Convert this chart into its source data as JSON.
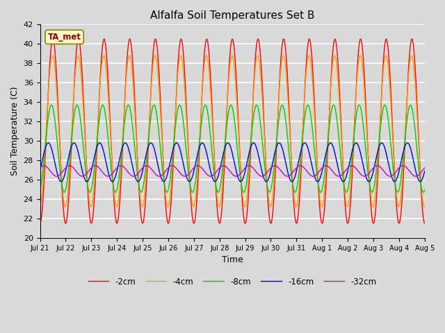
{
  "title": "Alfalfa Soil Temperatures Set B",
  "xlabel": "Time",
  "ylabel": "Soil Temperature (C)",
  "ylim": [
    20,
    42
  ],
  "yticks": [
    20,
    22,
    24,
    26,
    28,
    30,
    32,
    34,
    36,
    38,
    40,
    42
  ],
  "x_tick_labels": [
    "Jul 21",
    "Jul 22",
    "Jul 23",
    "Jul 24",
    "Jul 25",
    "Jul 26",
    "Jul 27",
    "Jul 28",
    "Jul 29",
    "Jul 30",
    "Jul 31",
    "Aug 1",
    "Aug 2",
    "Aug 3",
    "Aug 4",
    "Aug 5"
  ],
  "annotation_text": "TA_met",
  "background_color": "#d9d9d9",
  "plot_bg_color": "#d9d9d9",
  "grid_color": "#ffffff",
  "series": [
    {
      "label": "-2cm",
      "color": "#ff0000",
      "amplitude": 9.5,
      "mean": 31.0,
      "phase": 0.0
    },
    {
      "label": "-4cm",
      "color": "#ff9900",
      "amplitude": 7.8,
      "mean": 31.0,
      "phase": 0.08
    },
    {
      "label": "-8cm",
      "color": "#00cc00",
      "amplitude": 4.5,
      "mean": 29.2,
      "phase": 0.35
    },
    {
      "label": "-16cm",
      "color": "#0000dd",
      "amplitude": 2.0,
      "mean": 27.8,
      "phase": 1.1
    },
    {
      "label": "-32cm",
      "color": "#cc00cc",
      "amplitude": 0.55,
      "mean": 26.9,
      "phase": 2.2
    }
  ],
  "n_points": 3000,
  "linewidth": 1.0,
  "legend_ncol": 5,
  "figsize": [
    6.4,
    4.8
  ],
  "dpi": 100
}
